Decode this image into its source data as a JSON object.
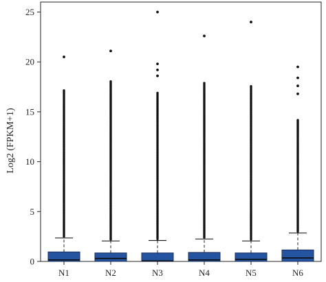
{
  "chart_data": {
    "type": "box",
    "ylabel": "Log2 (FPKM+1)",
    "xlabel": "",
    "ylim": [
      0,
      26
    ],
    "yticks": [
      0,
      5,
      10,
      15,
      20,
      25
    ],
    "grid": false,
    "box_color": "#2453a0",
    "categories": [
      "N1",
      "N2",
      "N3",
      "N4",
      "N5",
      "N6"
    ],
    "boxes": [
      {
        "name": "N1",
        "q1": 0.0,
        "median": 0.15,
        "q3": 0.95,
        "whisker_low": 0.0,
        "whisker_high": 2.35,
        "outlier_top": 17.2,
        "outliers": [
          20.5
        ]
      },
      {
        "name": "N2",
        "q1": 0.0,
        "median": 0.3,
        "q3": 0.85,
        "whisker_low": 0.0,
        "whisker_high": 2.05,
        "outlier_top": 18.1,
        "outliers": [
          21.1
        ]
      },
      {
        "name": "N3",
        "q1": 0.0,
        "median": 0.05,
        "q3": 0.85,
        "whisker_low": 0.0,
        "whisker_high": 2.1,
        "outlier_top": 17.0,
        "outliers": [
          18.6,
          19.2,
          19.8,
          25.0
        ]
      },
      {
        "name": "N4",
        "q1": 0.0,
        "median": 0.15,
        "q3": 0.9,
        "whisker_low": 0.0,
        "whisker_high": 2.25,
        "outlier_top": 17.9,
        "outliers": [
          22.6
        ]
      },
      {
        "name": "N5",
        "q1": 0.0,
        "median": 0.2,
        "q3": 0.85,
        "whisker_low": 0.0,
        "whisker_high": 2.05,
        "outlier_top": 17.6,
        "outliers": [
          24.0
        ]
      },
      {
        "name": "N6",
        "q1": 0.0,
        "median": 0.35,
        "q3": 1.15,
        "whisker_low": 0.0,
        "whisker_high": 2.85,
        "outlier_top": 14.2,
        "outliers": [
          16.8,
          17.6,
          18.4,
          19.5
        ]
      }
    ]
  }
}
